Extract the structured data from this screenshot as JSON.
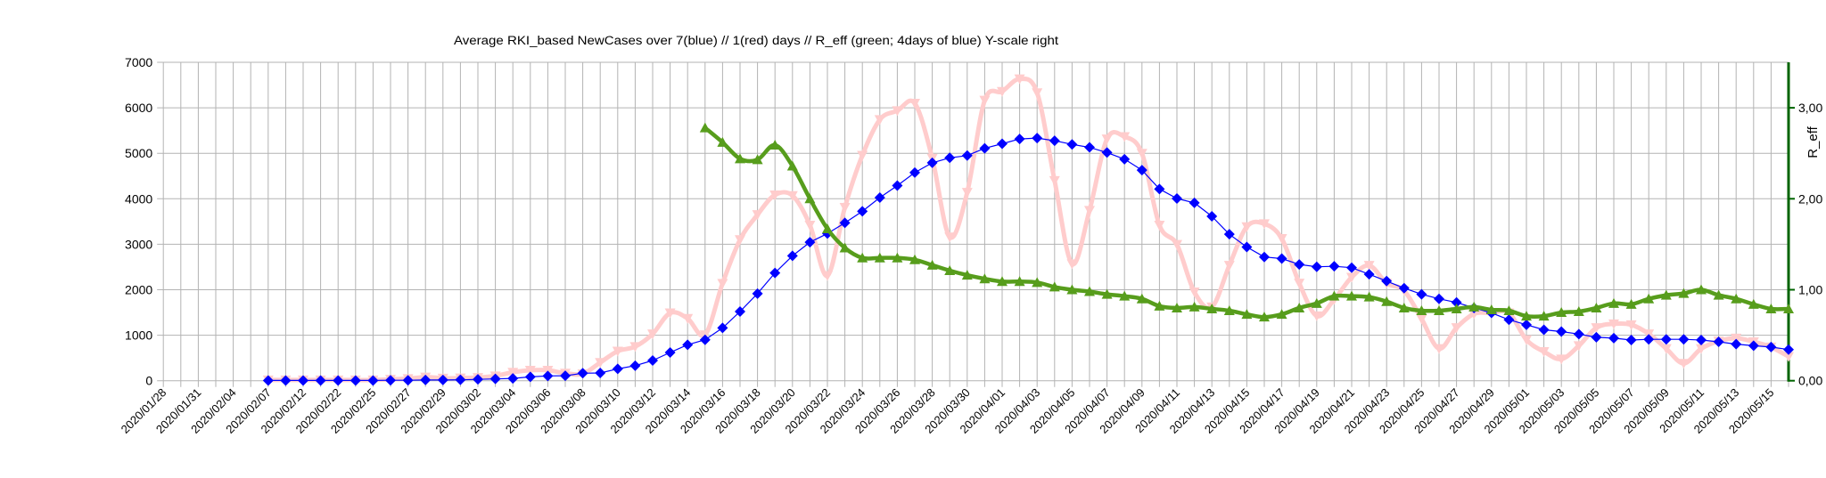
{
  "chart_data": {
    "type": "line",
    "title": "Average RKI_based NewCases over 7(blue) // 1(red) days //  R_eff (green; 4days of blue) Y-scale right",
    "xlabel": "",
    "ylabel": "",
    "y2label": "R_eff",
    "ylim": [
      0,
      7000
    ],
    "y2lim": [
      0,
      3.5
    ],
    "y_ticks": [
      "0",
      "1000",
      "2000",
      "3000",
      "4000",
      "5000",
      "6000",
      "7000"
    ],
    "y2_ticks": [
      "0,00",
      "1,00",
      "2,00",
      "3,00"
    ],
    "grid": true,
    "x_tick_labels": [
      "2020/01/28",
      "2020/01/31",
      "2020/02/04",
      "2020/02/07",
      "2020/02/12",
      "2020/02/22",
      "2020/02/25",
      "2020/02/27",
      "2020/02/29",
      "2020/03/02",
      "2020/03/04",
      "2020/03/06",
      "2020/03/08",
      "2020/03/10",
      "2020/03/12",
      "2020/03/14",
      "2020/03/16",
      "2020/03/18",
      "2020/03/20",
      "2020/03/22",
      "2020/03/24",
      "2020/03/26",
      "2020/03/28",
      "2020/03/30",
      "2020/04/01",
      "2020/04/03",
      "2020/04/05",
      "2020/04/07",
      "2020/04/09",
      "2020/04/11",
      "2020/04/13",
      "2020/04/15",
      "2020/04/17",
      "2020/04/19",
      "2020/04/21",
      "2020/04/23",
      "2020/04/25",
      "2020/04/27",
      "2020/04/29",
      "2020/05/01",
      "2020/05/03",
      "2020/05/05",
      "2020/05/07",
      "2020/05/09",
      "2020/05/11",
      "2020/05/13",
      "2020/05/15"
    ],
    "series": [
      {
        "axis": "left",
        "color": "#0000ff",
        "marker": "diamond",
        "values": [
          null,
          null,
          null,
          null,
          null,
          null,
          5,
          5,
          5,
          5,
          5,
          5,
          5,
          10,
          10,
          15,
          15,
          20,
          30,
          40,
          50,
          85,
          105,
          110,
          165,
          170,
          260,
          330,
          445,
          620,
          790,
          900,
          1160,
          1520,
          1915,
          2370,
          2745,
          3045,
          3235,
          3470,
          3725,
          4025,
          4290,
          4575,
          4790,
          4900,
          4950,
          5110,
          5210,
          5315,
          5335,
          5275,
          5195,
          5130,
          5015,
          4870,
          4630,
          4215,
          4005,
          3910,
          3615,
          3220,
          2940,
          2720,
          2685,
          2555,
          2505,
          2515,
          2485,
          2340,
          2190,
          2035,
          1900,
          1800,
          1720,
          1600,
          1490,
          1340,
          1230,
          1120,
          1080,
          1025,
          955,
          935,
          895,
          910,
          910,
          910,
          895,
          855,
          805,
          770,
          740,
          685
        ]
      },
      {
        "axis": "left",
        "color": "#ffcccc",
        "marker": "triangle-down",
        "smooth": true,
        "values": [
          null,
          null,
          null,
          null,
          null,
          null,
          15,
          15,
          15,
          15,
          15,
          15,
          15,
          30,
          45,
          80,
          55,
          60,
          70,
          105,
          185,
          230,
          230,
          165,
          150,
          400,
          650,
          750,
          1030,
          1490,
          1370,
          1010,
          2140,
          3100,
          3650,
          4085,
          4070,
          3420,
          2310,
          3810,
          4955,
          5740,
          5935,
          6100,
          4890,
          3160,
          4140,
          6165,
          6360,
          6635,
          6330,
          4400,
          2570,
          3745,
          5315,
          5365,
          5000,
          3420,
          2995,
          1950,
          1620,
          2535,
          3385,
          3450,
          3125,
          2145,
          1425,
          1785,
          2275,
          2535,
          2145,
          1980,
          1360,
          705,
          1165,
          1470,
          1490,
          1490,
          900,
          640,
          475,
          770,
          1165,
          1250,
          1230,
          1030,
          705,
          380,
          705,
          870,
          935,
          855,
          740,
          530
        ]
      },
      {
        "axis": "right",
        "color": "#579d1c",
        "marker": "triangle-up",
        "smooth": true,
        "values": [
          null,
          null,
          null,
          null,
          null,
          null,
          null,
          null,
          null,
          null,
          null,
          null,
          null,
          null,
          null,
          null,
          null,
          null,
          null,
          null,
          null,
          null,
          null,
          null,
          null,
          null,
          null,
          null,
          null,
          null,
          null,
          2.78,
          2.62,
          2.44,
          2.43,
          2.59,
          2.36,
          2.0,
          1.67,
          1.46,
          1.35,
          1.35,
          1.35,
          1.33,
          1.27,
          1.21,
          1.16,
          1.12,
          1.09,
          1.09,
          1.08,
          1.03,
          1.0,
          0.98,
          0.95,
          0.93,
          0.9,
          0.82,
          0.8,
          0.81,
          0.79,
          0.77,
          0.73,
          0.7,
          0.73,
          0.8,
          0.85,
          0.93,
          0.93,
          0.92,
          0.87,
          0.8,
          0.77,
          0.77,
          0.79,
          0.81,
          0.78,
          0.77,
          0.71,
          0.71,
          0.75,
          0.76,
          0.8,
          0.85,
          0.84,
          0.9,
          0.94,
          0.96,
          1.0,
          0.94,
          0.9,
          0.84,
          0.79,
          0.79
        ]
      }
    ],
    "colors": {
      "grid": "#b3b3b3",
      "right_axis": "#006400"
    }
  }
}
